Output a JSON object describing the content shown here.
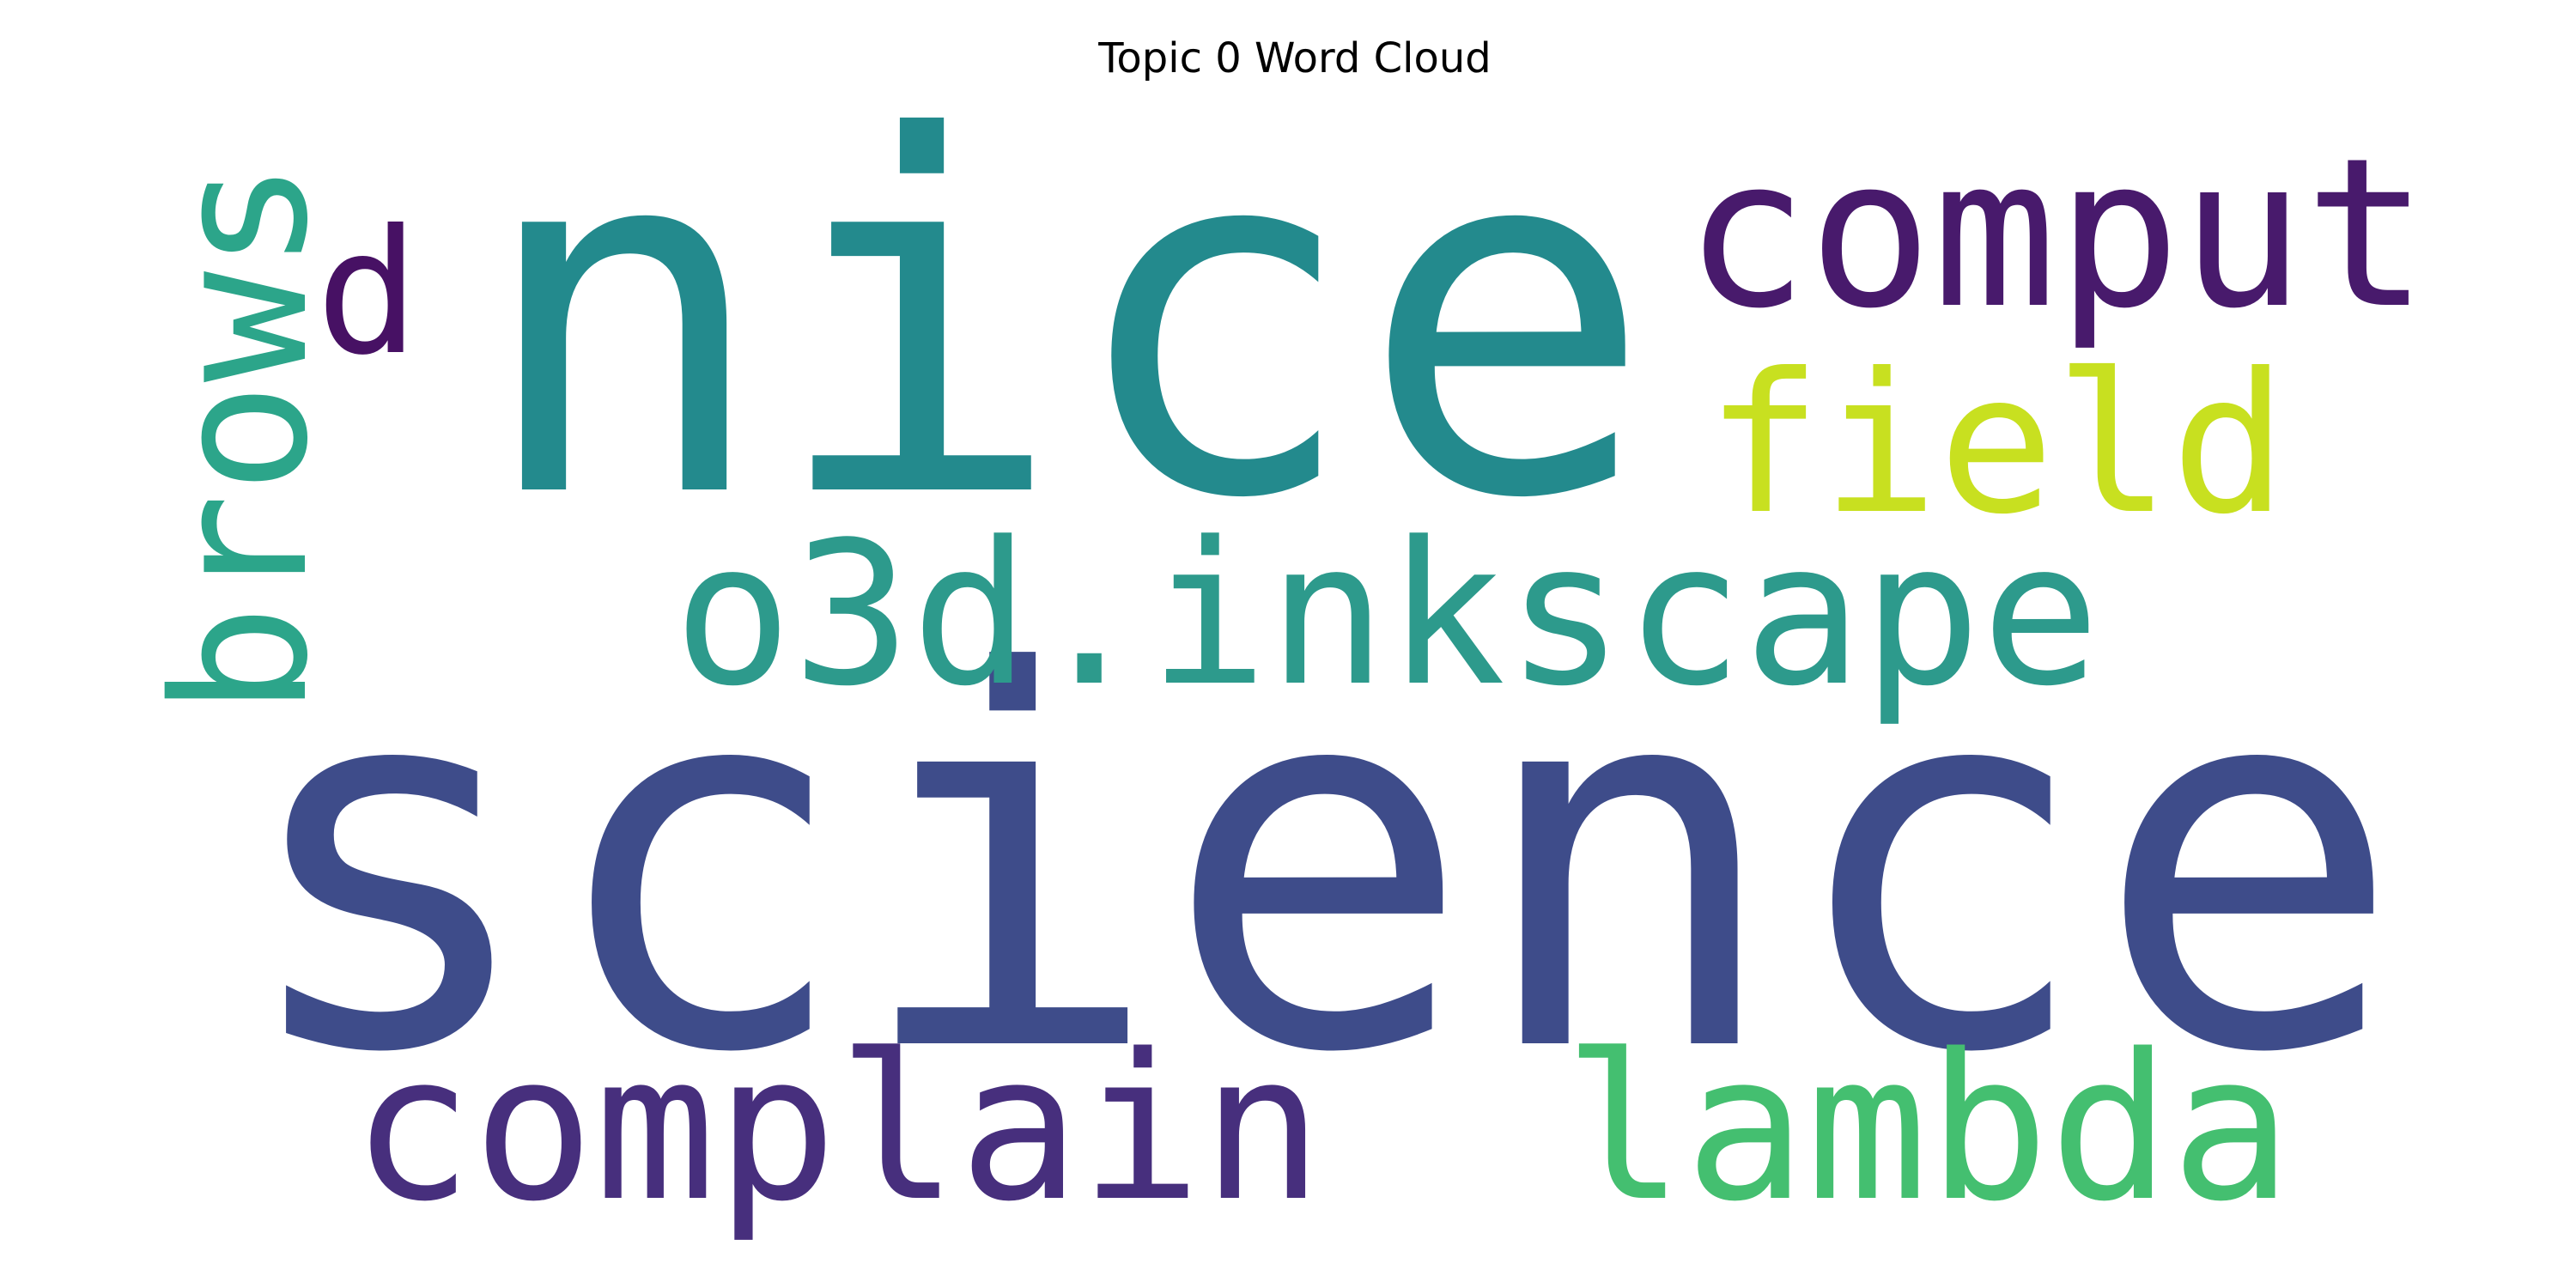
{
  "chart_data": {
    "type": "wordcloud",
    "title": "Topic 0 Word Cloud",
    "background": "#ffffff",
    "words": [
      {
        "text": "science",
        "weight": 1.0,
        "color": "#3e4c8a"
      },
      {
        "text": "nice",
        "weight": 0.95,
        "color": "#238a8d"
      },
      {
        "text": "o3d.inkscape",
        "weight": 0.45,
        "color": "#2d9a8c"
      },
      {
        "text": "comput",
        "weight": 0.38,
        "color": "#481a6c"
      },
      {
        "text": "field",
        "weight": 0.35,
        "color": "#c8e020"
      },
      {
        "text": "complain",
        "weight": 0.36,
        "color": "#472f7d"
      },
      {
        "text": "lambda",
        "weight": 0.35,
        "color": "#44bf70"
      },
      {
        "text": "brows",
        "weight": 0.33,
        "color": "#2ca58a"
      },
      {
        "text": "d",
        "weight": 0.28,
        "color": "#471164"
      }
    ]
  }
}
